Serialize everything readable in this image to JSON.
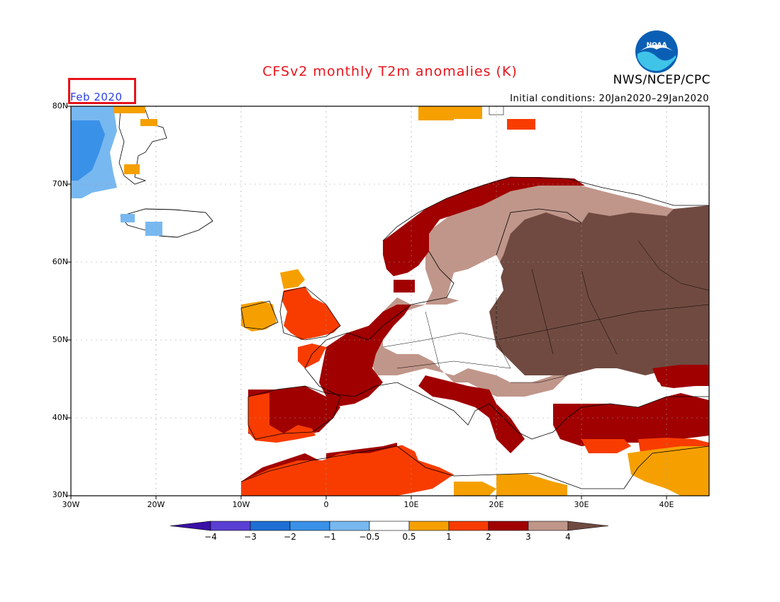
{
  "title": "CFSv2 monthly T2m anomalies (K)",
  "agency": "NWS/NCEP/CPC",
  "initial_conditions": "Initial conditions: 20Jan2020–29Jan2020",
  "month": "Feb 2020",
  "logo_text": "NOAA",
  "latitude_labels": [
    "80N",
    "70N",
    "60N",
    "50N",
    "40N",
    "30N"
  ],
  "longitude_labels": [
    "30W",
    "20W",
    "10W",
    "0",
    "10E",
    "20E",
    "30E",
    "40E"
  ],
  "colorbar": {
    "labels": [
      "−4",
      "−3",
      "−2",
      "−1",
      "−0.5",
      "0.5",
      "1",
      "2",
      "3",
      "4"
    ],
    "colors": [
      "#3a10a8",
      "#5a3fd4",
      "#1f6ed4",
      "#3a91e8",
      "#78b8f0",
      "#ffffff",
      "#f5a000",
      "#f83c00",
      "#a00000",
      "#c0968a",
      "#704a40"
    ]
  },
  "highlight_color": "#e8141b"
}
